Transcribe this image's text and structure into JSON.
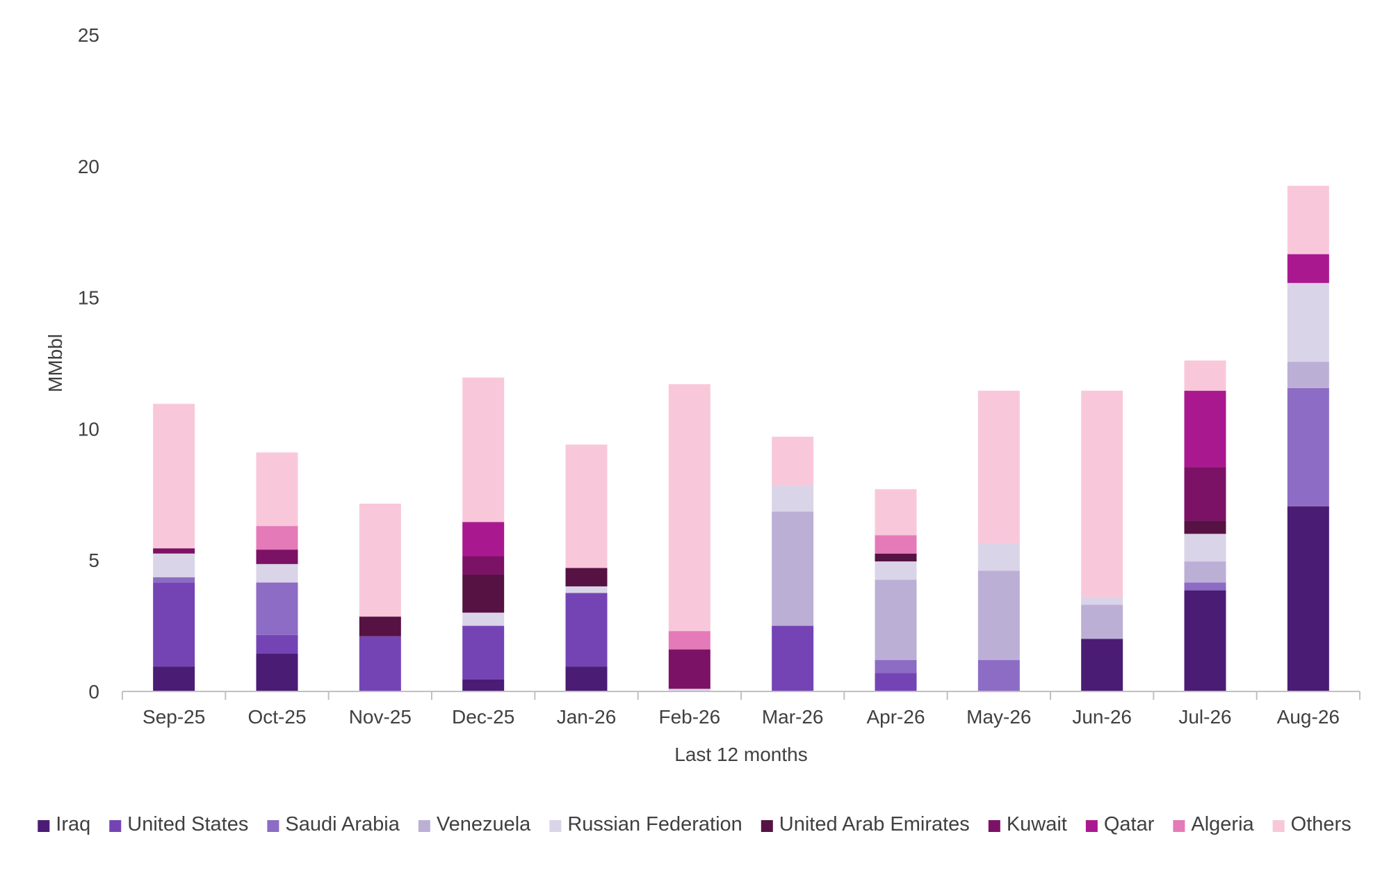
{
  "chart_data": {
    "type": "bar",
    "stacked": true,
    "title": "",
    "xlabel": "Last 12 months",
    "ylabel": "MMbbl",
    "ylim": [
      0,
      25
    ],
    "yticks": [
      0,
      5,
      10,
      15,
      20,
      25
    ],
    "grid": false,
    "legend_position": "bottom",
    "categories": [
      "Sep-25",
      "Oct-25",
      "Nov-25",
      "Dec-25",
      "Jan-26",
      "Feb-26",
      "Mar-26",
      "Apr-26",
      "May-26",
      "Jun-26",
      "Jul-26",
      "Aug-26"
    ],
    "series": [
      {
        "name": "Iraq",
        "color": "#4b1c74",
        "values": [
          0.95,
          1.45,
          0,
          0.45,
          0.95,
          0,
          0,
          0,
          0,
          2.0,
          3.85,
          7.05
        ]
      },
      {
        "name": "United States",
        "color": "#7444b5",
        "values": [
          3.2,
          0.7,
          2.1,
          2.05,
          2.8,
          0,
          2.5,
          0.7,
          0,
          0,
          0,
          0
        ]
      },
      {
        "name": "Saudi Arabia",
        "color": "#8c6cc4",
        "values": [
          0.2,
          2.0,
          0,
          0,
          0,
          0,
          0,
          0.5,
          1.2,
          0,
          0.3,
          4.5
        ]
      },
      {
        "name": "Venezuela",
        "color": "#bcafd6",
        "values": [
          0,
          0,
          0,
          0,
          0,
          0,
          4.35,
          3.05,
          3.4,
          1.3,
          0.8,
          1.0
        ]
      },
      {
        "name": "Russian Federation",
        "color": "#dad4e8",
        "values": [
          0.9,
          0.7,
          0,
          0.5,
          0.25,
          0.1,
          1.0,
          0.7,
          1.05,
          0.3,
          1.05,
          3.0
        ]
      },
      {
        "name": "United Arab Emirates",
        "color": "#561242",
        "values": [
          0,
          0,
          0.75,
          1.45,
          0.7,
          0,
          0,
          0.3,
          0,
          0,
          0.5,
          0
        ]
      },
      {
        "name": "Kuwait",
        "color": "#7c1266",
        "values": [
          0.2,
          0.55,
          0,
          0.7,
          0,
          1.5,
          0,
          0,
          0,
          0,
          2.05,
          0
        ]
      },
      {
        "name": "Qatar",
        "color": "#aa1890",
        "values": [
          0,
          0,
          0,
          1.3,
          0,
          0,
          0,
          0,
          0,
          0,
          2.9,
          1.1
        ]
      },
      {
        "name": "Algeria",
        "color": "#e57ab8",
        "values": [
          0,
          0.9,
          0,
          0,
          0,
          0.7,
          0,
          0.7,
          0,
          0,
          0,
          0
        ]
      },
      {
        "name": "Others",
        "color": "#f8c8da",
        "values": [
          5.5,
          2.8,
          4.3,
          5.5,
          4.7,
          9.4,
          1.85,
          1.75,
          5.8,
          7.85,
          1.15,
          2.6
        ]
      }
    ]
  }
}
